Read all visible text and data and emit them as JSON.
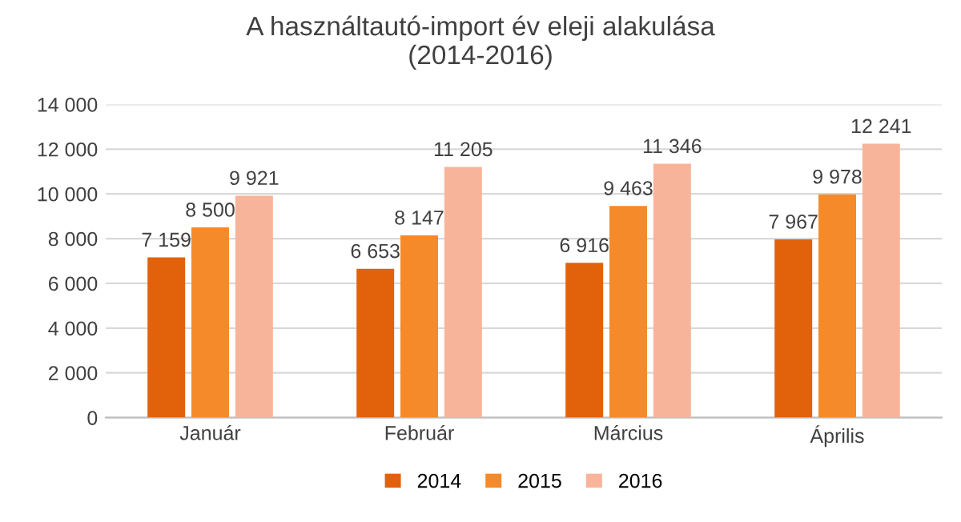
{
  "chart_data": {
    "type": "bar",
    "title": "A használtautó-import év eleji alakulása\n(2014-2016)",
    "categories": [
      "Január",
      "Február",
      "Március",
      "Április"
    ],
    "series": [
      {
        "name": "2014",
        "color": "#e2620c",
        "values": [
          7159,
          6653,
          6916,
          7967
        ],
        "value_labels": [
          "7 159",
          "6 653",
          "6 916",
          "7 967"
        ]
      },
      {
        "name": "2015",
        "color": "#f58a2a",
        "values": [
          8500,
          8147,
          9463,
          9978
        ],
        "value_labels": [
          "8 500",
          "8 147",
          "9 463",
          "9 978"
        ]
      },
      {
        "name": "2016",
        "color": "#f8b49a",
        "values": [
          9921,
          11205,
          11346,
          12241
        ],
        "value_labels": [
          "9 921",
          "11 205",
          "11 346",
          "12 241"
        ]
      }
    ],
    "ylim": [
      0,
      14000
    ],
    "yticks": [
      {
        "value": 0,
        "label": "0"
      },
      {
        "value": 2000,
        "label": "2 000"
      },
      {
        "value": 4000,
        "label": "4 000"
      },
      {
        "value": 6000,
        "label": "6 000"
      },
      {
        "value": 8000,
        "label": "8 000"
      },
      {
        "value": 10000,
        "label": "10 000"
      },
      {
        "value": 12000,
        "label": "12 000"
      },
      {
        "value": 14000,
        "label": "14 000"
      }
    ],
    "grid": "y",
    "legend": "bottom"
  }
}
